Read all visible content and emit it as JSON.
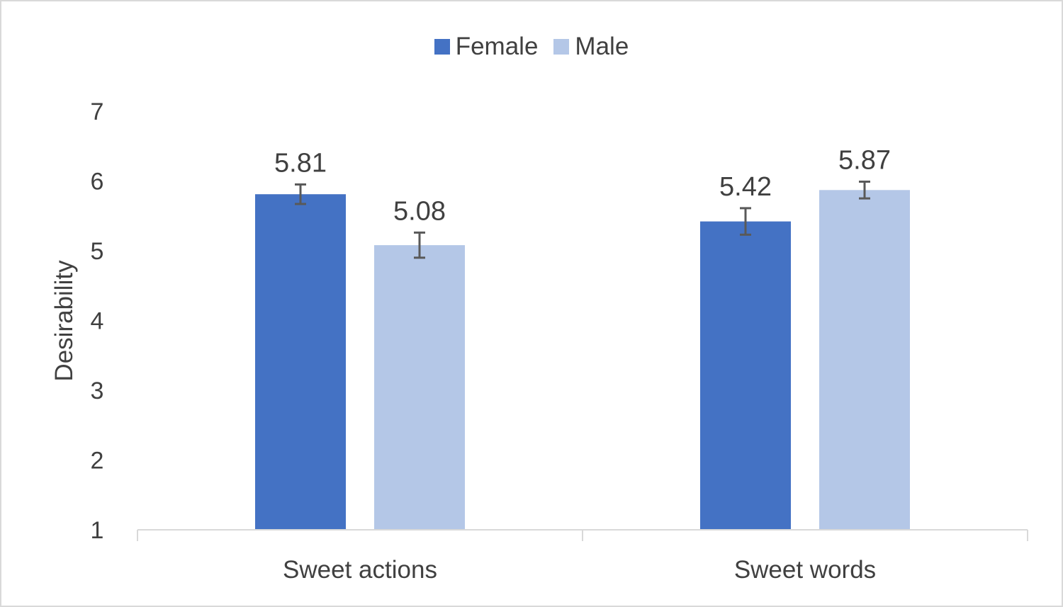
{
  "chart_data": {
    "type": "bar",
    "categories": [
      "Sweet actions",
      "Sweet words"
    ],
    "series": [
      {
        "name": "Female",
        "values": [
          5.81,
          5.42
        ],
        "error": [
          0.14,
          0.19
        ],
        "color": "#4472c4"
      },
      {
        "name": "Male",
        "values": [
          5.08,
          5.87
        ],
        "error": [
          0.18,
          0.12
        ],
        "color": "#b4c7e7"
      }
    ],
    "data_labels": [
      "5.81",
      "5.42",
      "5.08",
      "5.87"
    ],
    "ylabel": "Desirability",
    "xlabel": "",
    "ylim": [
      1,
      7
    ],
    "yticks": [
      "1",
      "2",
      "3",
      "4",
      "5",
      "6",
      "7"
    ],
    "grid": false,
    "legend": "top-center",
    "error_bar_color": "#595959",
    "label_color": "#404040",
    "axis_color": "#d9d9d9"
  }
}
